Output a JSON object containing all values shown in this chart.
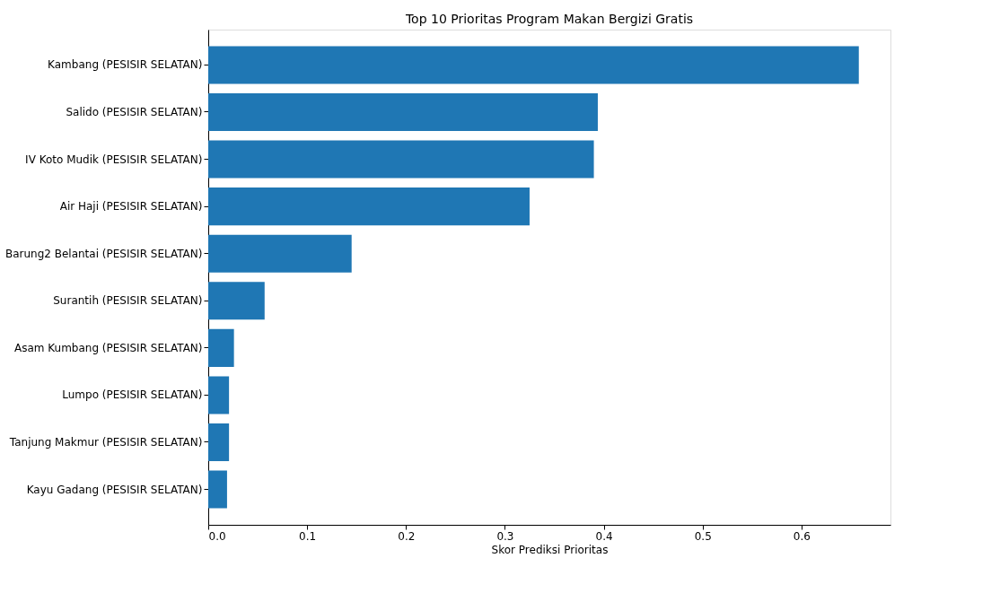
{
  "chart_data": {
    "type": "bar",
    "orientation": "horizontal",
    "title": "Top 10 Prioritas Program Makan Bergizi Gratis",
    "xlabel": "Skor Prediksi Prioritas",
    "categories": [
      "Kambang (PESISIR SELATAN)",
      "Salido (PESISIR SELATAN)",
      "IV Koto Mudik (PESISIR SELATAN)",
      "Air Haji (PESISIR SELATAN)",
      "Barung2 Belantai (PESISIR SELATAN)",
      "Surantih (PESISIR SELATAN)",
      "Asam Kumbang (PESISIR SELATAN)",
      "Lumpo (PESISIR SELATAN)",
      "Tanjung Makmur (PESISIR SELATAN)",
      "Kayu Gadang (PESISIR SELATAN)"
    ],
    "values": [
      0.658,
      0.394,
      0.39,
      0.325,
      0.145,
      0.057,
      0.026,
      0.021,
      0.021,
      0.019
    ],
    "color": "#1f77b4",
    "xlim": [
      0,
      0.69
    ],
    "xticks": [
      {
        "value": 0,
        "label": "0.0"
      },
      0.1,
      0.2,
      0.3,
      0.4,
      0.5,
      0.6
    ],
    "grid": false
  }
}
